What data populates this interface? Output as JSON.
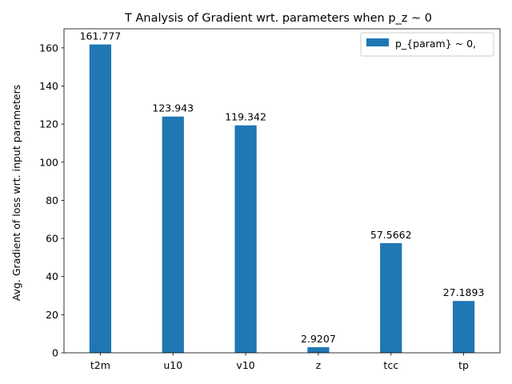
{
  "chart_data": {
    "type": "bar",
    "title": "T Analysis of Gradient wrt. parameters when p_z ~ 0",
    "xlabel": "",
    "ylabel": "Avg. Gradient of loss wrt. input parameters",
    "categories": [
      "t2m",
      "u10",
      "v10",
      "z",
      "tcc",
      "tp"
    ],
    "series": [
      {
        "name": "p_{param} ~ 0,",
        "values": [
          161.777,
          123.943,
          119.342,
          2.9207,
          57.5662,
          27.1893
        ],
        "data_labels": [
          "161.777",
          "123.943",
          "119.342",
          "2.9207",
          "57.5662",
          "27.1893"
        ]
      }
    ],
    "ylim": [
      0,
      170
    ],
    "yticks": [
      0,
      20,
      40,
      60,
      80,
      100,
      120,
      140,
      160
    ],
    "grid": false,
    "legend_position": "top-right",
    "bar_color": "#1f77b4"
  }
}
